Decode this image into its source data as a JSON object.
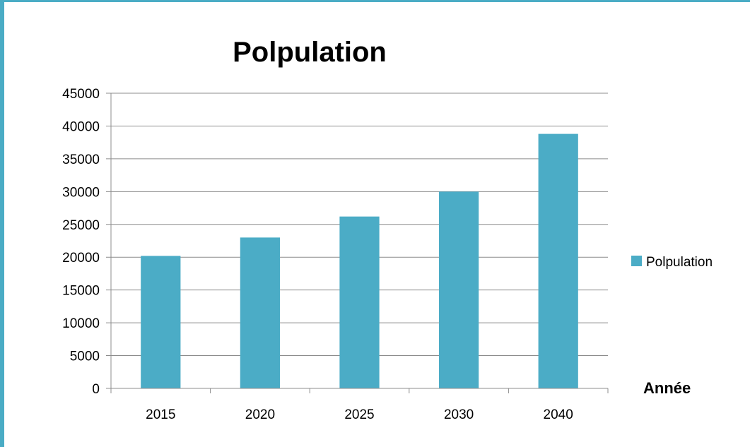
{
  "chart_data": {
    "type": "bar",
    "title": "Polpulation",
    "categories": [
      "2015",
      "2020",
      "2025",
      "2030",
      "2040"
    ],
    "series": [
      {
        "name": "Polpulation",
        "values": [
          20200,
          23000,
          26200,
          30000,
          38800
        ],
        "color": "#4bacc6"
      }
    ],
    "xlabel": "Année",
    "ylabel": "",
    "ylim": [
      0,
      45000
    ],
    "yticks": [
      0,
      5000,
      10000,
      15000,
      20000,
      25000,
      30000,
      35000,
      40000,
      45000
    ],
    "grid": true,
    "legend_position": "right"
  }
}
